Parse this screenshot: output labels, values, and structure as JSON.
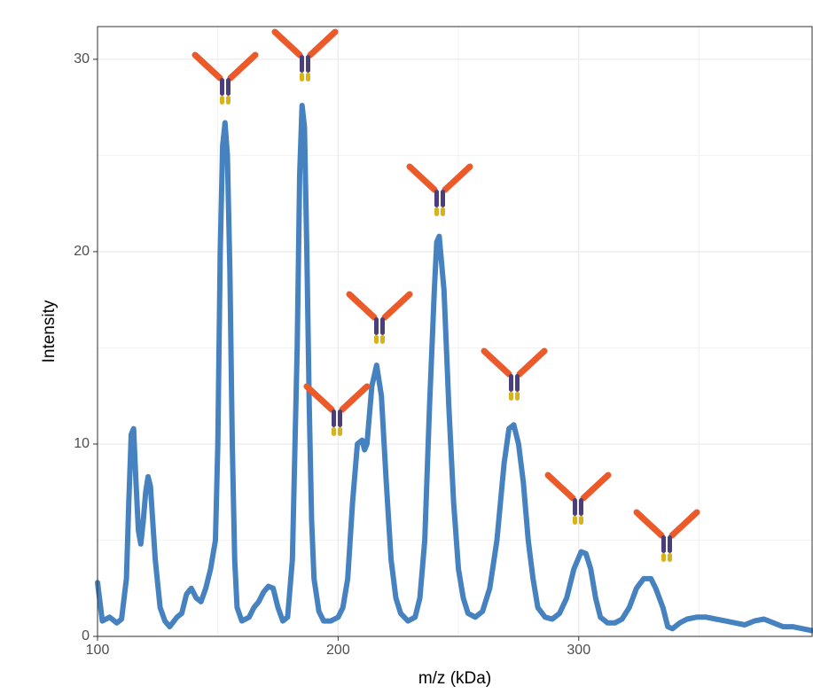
{
  "chart_data": {
    "type": "line",
    "x_label": "m/z (kDa)",
    "y_label": "Intensity",
    "x": [
      100,
      102,
      105,
      108,
      110,
      112,
      113,
      114,
      115,
      116,
      117,
      118,
      119,
      120,
      121,
      122,
      124,
      126,
      128,
      130,
      133,
      135,
      137,
      139,
      141,
      143,
      145,
      147,
      149,
      150,
      151,
      152,
      153,
      154,
      155,
      156,
      157,
      158,
      160,
      163,
      165,
      167,
      169,
      171,
      173,
      175,
      177,
      179,
      181,
      183,
      184,
      185,
      186,
      187,
      188,
      189,
      190,
      192,
      194,
      197,
      200,
      202,
      204,
      206,
      208,
      210,
      211,
      212,
      214,
      216,
      218,
      220,
      222,
      224,
      226,
      229,
      232,
      234,
      236,
      238,
      240,
      241,
      242,
      244,
      246,
      248,
      250,
      252,
      254,
      257,
      260,
      263,
      266,
      269,
      271,
      273,
      275,
      277,
      279,
      281,
      283,
      286,
      289,
      292,
      295,
      298,
      301,
      303,
      305,
      307,
      309,
      312,
      315,
      318,
      321,
      324,
      327,
      330,
      332,
      335,
      337,
      339,
      342,
      345,
      349,
      353,
      357,
      361,
      365,
      369,
      373,
      377,
      381,
      385,
      389,
      393,
      397
    ],
    "series": [
      {
        "color": "#4682c0",
        "values": [
          2.8,
          0.8,
          1.0,
          0.7,
          0.9,
          3,
          7,
          10.5,
          10.8,
          8,
          5.5,
          4.8,
          6,
          7.5,
          8.3,
          7.8,
          4,
          1.5,
          0.8,
          0.5,
          1.0,
          1.2,
          2.2,
          2.5,
          2.0,
          1.8,
          2.5,
          3.5,
          5,
          10,
          20,
          25.5,
          26.7,
          25,
          19,
          10,
          4,
          1.5,
          0.8,
          1.0,
          1.5,
          1.8,
          2.3,
          2.6,
          2.5,
          1.5,
          0.8,
          1.0,
          4,
          15,
          24,
          27.6,
          26.5,
          20,
          12,
          6,
          3,
          1.3,
          0.8,
          0.8,
          1.0,
          1.5,
          3,
          7,
          10,
          10.2,
          9.7,
          10,
          13,
          14.1,
          12.5,
          8,
          4,
          2,
          1.2,
          0.8,
          1.0,
          2,
          5,
          12,
          18,
          20.5,
          20.8,
          18,
          12,
          7,
          3.5,
          2,
          1.2,
          1.0,
          1.3,
          2.5,
          5,
          9,
          10.8,
          11,
          10,
          8,
          5,
          3,
          1.5,
          1.0,
          0.9,
          1.2,
          2.0,
          3.5,
          4.4,
          4.3,
          3.5,
          2,
          1.0,
          0.7,
          0.7,
          0.9,
          1.5,
          2.5,
          3.0,
          3.0,
          2.5,
          1.5,
          0.5,
          0.4,
          0.7,
          0.9,
          1.0,
          1.0,
          0.9,
          0.8,
          0.7,
          0.6,
          0.8,
          0.9,
          0.7,
          0.5,
          0.5,
          0.4,
          0.3
        ]
      }
    ],
    "xlim": [
      100,
      397
    ],
    "xticks": [
      100,
      200,
      300
    ],
    "xminor": [
      150,
      250,
      350
    ],
    "ylim": [
      0,
      31.7
    ],
    "yticks": [
      0,
      10,
      20,
      30
    ],
    "yminor": [
      5,
      15,
      25
    ],
    "grid": true
  }
}
